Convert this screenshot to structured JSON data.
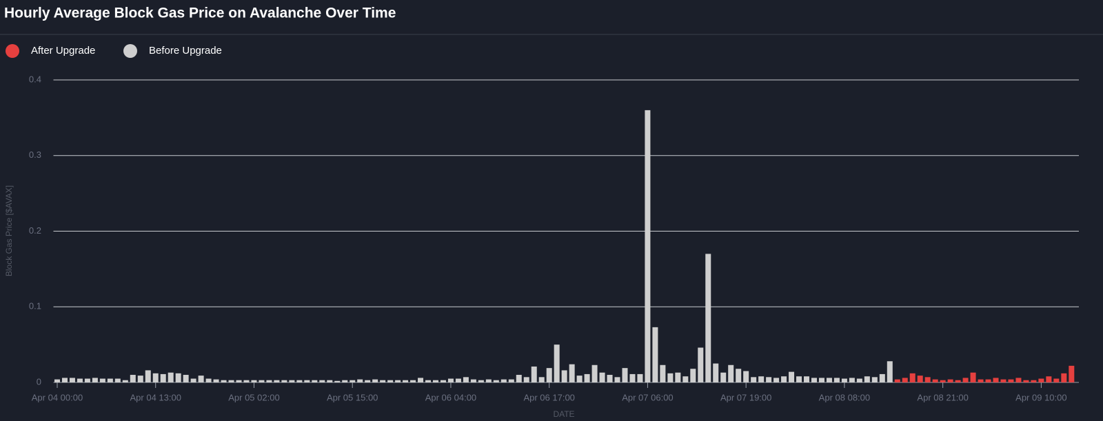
{
  "chart_data": {
    "type": "bar",
    "title": "Hourly Average Block Gas Price on Avalanche Over Time",
    "x_label": "DATE",
    "y_label": "Block Gas Price [$AVAX]",
    "categories": [
      "Apr 04 00:00",
      null,
      null,
      null,
      null,
      null,
      null,
      null,
      null,
      null,
      null,
      null,
      null,
      "Apr 04 13:00",
      null,
      null,
      null,
      null,
      null,
      null,
      null,
      null,
      null,
      null,
      null,
      null,
      "Apr 05 02:00",
      null,
      null,
      null,
      null,
      null,
      null,
      null,
      null,
      null,
      null,
      null,
      null,
      "Apr 05 15:00",
      null,
      null,
      null,
      null,
      null,
      null,
      null,
      null,
      null,
      null,
      null,
      null,
      "Apr 06 04:00",
      null,
      null,
      null,
      null,
      null,
      null,
      null,
      null,
      null,
      null,
      null,
      null,
      "Apr 06 17:00",
      null,
      null,
      null,
      null,
      null,
      null,
      null,
      null,
      null,
      null,
      null,
      null,
      "Apr 07 06:00",
      null,
      null,
      null,
      null,
      null,
      null,
      null,
      null,
      null,
      null,
      null,
      null,
      "Apr 07 19:00",
      null,
      null,
      null,
      null,
      null,
      null,
      null,
      null,
      null,
      null,
      null,
      null,
      "Apr 08 08:00",
      null,
      null,
      null,
      null,
      null,
      null,
      null,
      null,
      null,
      null,
      null,
      null,
      "Apr 08 21:00",
      null,
      null,
      null,
      null,
      null,
      null,
      null,
      null,
      null,
      null,
      null,
      null,
      "Apr 09 10:00",
      null,
      null,
      null,
      null
    ],
    "series": [
      {
        "name": "After Upgrade",
        "color": "#e5403f",
        "values": [
          null,
          null,
          null,
          null,
          null,
          null,
          null,
          null,
          null,
          null,
          null,
          null,
          null,
          null,
          null,
          null,
          null,
          null,
          null,
          null,
          null,
          null,
          null,
          null,
          null,
          null,
          null,
          null,
          null,
          null,
          null,
          null,
          null,
          null,
          null,
          null,
          null,
          null,
          null,
          null,
          null,
          null,
          null,
          null,
          null,
          null,
          null,
          null,
          null,
          null,
          null,
          null,
          null,
          null,
          null,
          null,
          null,
          null,
          null,
          null,
          null,
          null,
          null,
          null,
          null,
          null,
          null,
          null,
          null,
          null,
          null,
          null,
          null,
          null,
          null,
          null,
          null,
          null,
          null,
          null,
          null,
          null,
          null,
          null,
          null,
          null,
          null,
          null,
          null,
          null,
          null,
          null,
          null,
          null,
          null,
          null,
          null,
          null,
          null,
          null,
          null,
          null,
          null,
          null,
          null,
          null,
          null,
          null,
          null,
          null,
          null,
          0.004,
          0.006,
          0.012,
          0.009,
          0.007,
          0.004,
          0.003,
          0.004,
          0.003,
          0.006,
          0.013,
          0.004,
          0.004,
          0.006,
          0.004,
          0.004,
          0.006,
          0.003,
          0.003,
          0.005,
          0.008,
          0.005,
          0.012,
          0.022
        ]
      },
      {
        "name": "Before Upgrade",
        "color": "#cfcfcf",
        "values": [
          0.004,
          0.006,
          0.006,
          0.005,
          0.005,
          0.006,
          0.005,
          0.005,
          0.005,
          0.003,
          0.01,
          0.009,
          0.016,
          0.012,
          0.011,
          0.013,
          0.012,
          0.01,
          0.005,
          0.009,
          0.005,
          0.004,
          0.003,
          0.003,
          0.003,
          0.003,
          0.003,
          0.003,
          0.003,
          0.003,
          0.003,
          0.003,
          0.003,
          0.003,
          0.003,
          0.003,
          0.003,
          0.002,
          0.003,
          0.003,
          0.004,
          0.003,
          0.004,
          0.003,
          0.003,
          0.003,
          0.003,
          0.003,
          0.006,
          0.003,
          0.003,
          0.003,
          0.005,
          0.005,
          0.007,
          0.004,
          0.003,
          0.004,
          0.003,
          0.004,
          0.004,
          0.01,
          0.007,
          0.021,
          0.007,
          0.019,
          0.05,
          0.016,
          0.024,
          0.009,
          0.011,
          0.023,
          0.013,
          0.01,
          0.007,
          0.019,
          0.011,
          0.011,
          0.36,
          0.073,
          0.023,
          0.012,
          0.013,
          0.008,
          0.018,
          0.046,
          0.17,
          0.025,
          0.013,
          0.023,
          0.018,
          0.015,
          0.007,
          0.008,
          0.007,
          0.006,
          0.008,
          0.014,
          0.008,
          0.008,
          0.006,
          0.006,
          0.006,
          0.006,
          0.005,
          0.006,
          0.005,
          0.008,
          0.007,
          0.011,
          0.028,
          null,
          null,
          null,
          null,
          null,
          null,
          null,
          null,
          null,
          null,
          null,
          null,
          null,
          null,
          null,
          null,
          null,
          null,
          null,
          null,
          null,
          null,
          null,
          null
        ]
      }
    ],
    "ylim": [
      0,
      0.4
    ],
    "yticks": [
      0,
      0.1,
      0.2,
      0.3,
      0.4
    ],
    "grid": true
  }
}
